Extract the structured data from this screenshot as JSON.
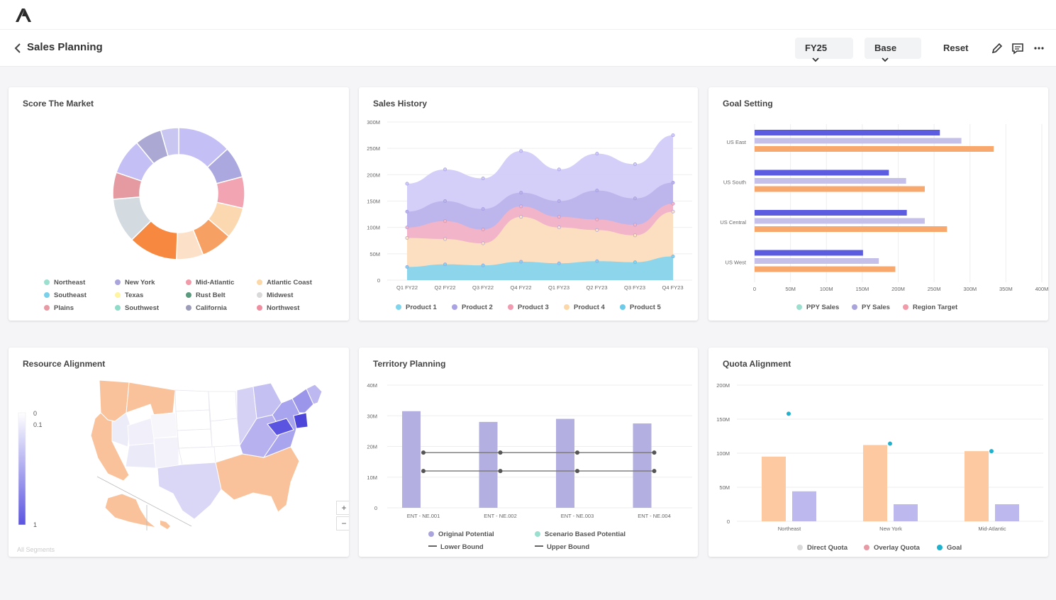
{
  "header": {
    "title": "Sales Planning",
    "fiscal_year": "FY25",
    "scenario": "Base",
    "reset_label": "Reset"
  },
  "colors": {
    "accent_blue": "#5b5ce0",
    "lavender": "#c4bff5",
    "orange": "#f59a5c",
    "peach": "#fcd3a6",
    "teal": "#1fb2cf"
  },
  "score_market": {
    "title": "Score The Market",
    "legend": [
      {
        "label": "Northeast",
        "color": "#9be0cf"
      },
      {
        "label": "New York",
        "color": "#a9a4dc"
      },
      {
        "label": "Mid-Atlantic",
        "color": "#f29aa8"
      },
      {
        "label": "Atlantic Coast",
        "color": "#fcd8a8"
      },
      {
        "label": "Southeast",
        "color": "#79d0ea"
      },
      {
        "label": "Texas",
        "color": "#fff4a0"
      },
      {
        "label": "Rust Belt",
        "color": "#5a9b7e"
      },
      {
        "label": "Midwest",
        "color": "#d9d9d9"
      },
      {
        "label": "Plains",
        "color": "#e89aa4"
      },
      {
        "label": "Southwest",
        "color": "#8edcc8"
      },
      {
        "label": "California",
        "color": "#9c9bb8"
      },
      {
        "label": "Northwest",
        "color": "#f08ea0"
      }
    ],
    "slices": [
      {
        "value": 12,
        "color": "#c4bff5"
      },
      {
        "value": 7,
        "color": "#aba8e0"
      },
      {
        "value": 7,
        "color": "#f2a4b2"
      },
      {
        "value": 7,
        "color": "#fcd8b0"
      },
      {
        "value": 7,
        "color": "#f7a063"
      },
      {
        "value": 6,
        "color": "#fde0c8"
      },
      {
        "value": 11,
        "color": "#f7883f"
      },
      {
        "value": 10,
        "color": "#d3dbe0"
      },
      {
        "value": 6,
        "color": "#e49aa0"
      },
      {
        "value": 8,
        "color": "#c4bff5"
      },
      {
        "value": 6,
        "color": "#aba8d4"
      },
      {
        "value": 4,
        "color": "#c9c6f2"
      }
    ]
  },
  "sales_history": {
    "title": "Sales History",
    "chart_data": {
      "type": "area",
      "categories": [
        "Q1 FY22",
        "Q2 FY22",
        "Q3 FY22",
        "Q4 FY22",
        "Q1 FY23",
        "Q2 FY23",
        "Q3 FY23",
        "Q4 FY23"
      ],
      "y_ticks": [
        "0",
        "50M",
        "100M",
        "150M",
        "200M",
        "250M",
        "300M"
      ],
      "ylim": [
        0,
        300
      ],
      "series": [
        {
          "name": "Product 1",
          "color": "#7fd4ee",
          "values": [
            25,
            30,
            28,
            35,
            32,
            36,
            34,
            45
          ]
        },
        {
          "name": "Product 4",
          "color": "#fde2c0",
          "values": [
            80,
            78,
            70,
            120,
            100,
            95,
            85,
            130
          ]
        },
        {
          "name": "Product 3",
          "color": "#f6b4c4",
          "values": [
            100,
            112,
            96,
            140,
            120,
            115,
            105,
            145
          ]
        },
        {
          "name": "Product 2",
          "color": "#b9b3ea",
          "values": [
            130,
            150,
            135,
            166,
            150,
            170,
            155,
            185
          ]
        },
        {
          "name": "Product 5",
          "color": "#cfcaf8",
          "values": [
            183,
            210,
            193,
            245,
            210,
            240,
            220,
            275
          ]
        }
      ],
      "legend": [
        {
          "label": "Product 1",
          "color": "#7fd4ee"
        },
        {
          "label": "Product 2",
          "color": "#a9a3e6"
        },
        {
          "label": "Product 3",
          "color": "#f29ab0"
        },
        {
          "label": "Product 4",
          "color": "#fcd8a8"
        },
        {
          "label": "Product 5",
          "color": "#6ccbe8"
        }
      ]
    }
  },
  "goal_setting": {
    "title": "Goal Setting",
    "chart_data": {
      "type": "bar",
      "orientation": "horizontal",
      "categories": [
        "US East",
        "US South",
        "US Central",
        "US West"
      ],
      "x_ticks": [
        "0",
        "50M",
        "100M",
        "150M",
        "200M",
        "250M",
        "300M",
        "350M",
        "400M"
      ],
      "xlim": [
        0,
        400
      ],
      "series": [
        {
          "name": "PPY Sales",
          "color": "#5b5ce0",
          "values": [
            258,
            187,
            212,
            151
          ]
        },
        {
          "name": "PY Sales",
          "color": "#c4c0ea",
          "values": [
            288,
            211,
            237,
            173
          ]
        },
        {
          "name": "Region Target",
          "color": "#f8a86c",
          "values": [
            333,
            237,
            268,
            196
          ]
        }
      ],
      "legend": [
        {
          "label": "PPY Sales",
          "color": "#9be0cf"
        },
        {
          "label": "PY Sales",
          "color": "#a9a4dc"
        },
        {
          "label": "Region Target",
          "color": "#f29aa8"
        }
      ]
    }
  },
  "resource_alignment": {
    "title": "Resource Alignment",
    "scale_labels": [
      "0",
      "0.1",
      "1"
    ],
    "footer": "All Segments",
    "zoom_in": "+",
    "zoom_out": "−"
  },
  "territory_planning": {
    "title": "Territory Planning",
    "chart_data": {
      "type": "bar",
      "categories": [
        "ENT - NE.001",
        "ENT - NE.002",
        "ENT - NE.003",
        "ENT - NE.004"
      ],
      "y_ticks": [
        "0",
        "10M",
        "20M",
        "30M",
        "40M"
      ],
      "ylim": [
        0,
        40
      ],
      "series": [
        {
          "name": "Original Potential",
          "color": "#b3afe0",
          "values": [
            31.5,
            28,
            29,
            27.5
          ]
        },
        {
          "name": "Lower Bound",
          "color": "#777777",
          "values": [
            12,
            12,
            12,
            12
          ]
        },
        {
          "name": "Upper Bound",
          "color": "#777777",
          "values": [
            18,
            18,
            18,
            18
          ]
        }
      ],
      "legend": [
        {
          "label": "Original Potential",
          "color": "#a9a4dc",
          "marker": "dot"
        },
        {
          "label": "Scenario Based Potential",
          "color": "#9be0cf",
          "marker": "dot"
        },
        {
          "label": "Lower Bound",
          "color": "#666666",
          "marker": "line"
        },
        {
          "label": "Upper Bound",
          "color": "#666666",
          "marker": "line"
        }
      ]
    }
  },
  "quota_alignment": {
    "title": "Quota Alignment",
    "chart_data": {
      "type": "bar",
      "categories": [
        "Northeast",
        "New York",
        "Mid-Atlantic"
      ],
      "y_ticks": [
        "0",
        "50M",
        "100M",
        "150M",
        "200M"
      ],
      "ylim": [
        0,
        200
      ],
      "series": [
        {
          "name": "Direct Quota",
          "color": "#fcc9a0",
          "values": [
            95,
            112,
            103
          ]
        },
        {
          "name": "Overlay Quota",
          "color": "#bdb8ee",
          "values": [
            44,
            25,
            25
          ]
        },
        {
          "name": "Goal",
          "color": "#1fb2cf",
          "values": [
            158,
            114,
            103
          ]
        }
      ],
      "legend": [
        {
          "label": "Direct Quota",
          "color": "#d9d9d9"
        },
        {
          "label": "Overlay Quota",
          "color": "#e89aa4"
        },
        {
          "label": "Goal",
          "color": "#1fb2cf"
        }
      ]
    }
  }
}
